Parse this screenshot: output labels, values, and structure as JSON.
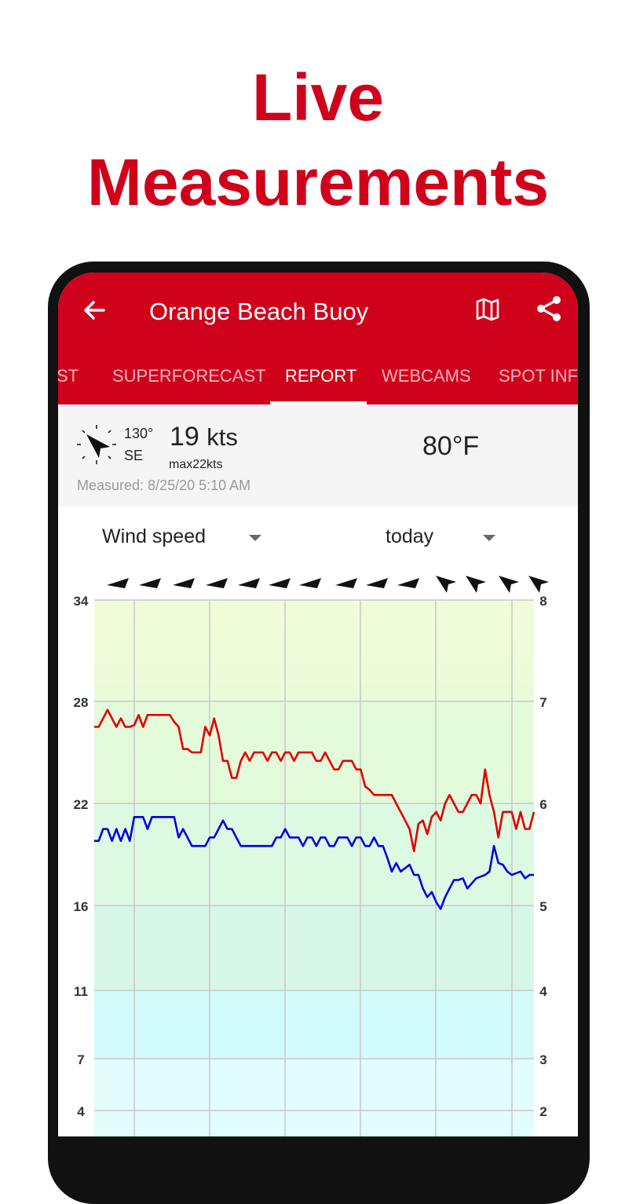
{
  "headline": {
    "line1": "Live",
    "line2": "Measurements"
  },
  "app_bar": {
    "title": "Orange Beach Buoy",
    "icons": {
      "back": "arrow-left-icon",
      "map": "map-icon",
      "share": "share-icon"
    }
  },
  "tabs": [
    {
      "label": "FORECAST",
      "visible_text": "ST"
    },
    {
      "label": "SUPERFORECAST"
    },
    {
      "label": "REPORT",
      "selected": true
    },
    {
      "label": "WEBCAMS"
    },
    {
      "label": "SPOT INFO",
      "visible_text": "SPOT INFO"
    }
  ],
  "summary": {
    "direction_degrees": "130°",
    "direction_name": "SE",
    "speed": "19",
    "speed_unit": "kts",
    "gust": "max22kts",
    "temperature": "80°F",
    "measured": "Measured: 8/25/20 5:10 AM"
  },
  "controls": {
    "parameter_select": "Wind speed",
    "period_select": "today"
  },
  "colors": {
    "brand": "#d0021b",
    "wind_speed_line": "#0000e0",
    "wind_gust_line": "#e00000"
  },
  "chart_data": {
    "type": "line",
    "y_left_ticks": [
      4,
      7,
      11,
      16,
      22,
      28,
      34
    ],
    "y_right_ticks": [
      2,
      3,
      4,
      5,
      6,
      7,
      8
    ],
    "ylim": [
      4,
      34
    ],
    "grid": true,
    "x_count": 100,
    "series": [
      {
        "values": [
          19.8,
          19.8,
          20.5,
          20.5,
          19.8,
          20.5,
          19.8,
          20.5,
          19.8,
          21.2,
          21.2,
          21.2,
          20.5,
          21.2,
          21.2,
          21.2,
          21.2,
          21.2,
          21.2,
          20.0,
          20.5,
          20.0,
          19.5,
          19.5,
          19.5,
          19.5,
          20.0,
          20.0,
          20.5,
          21.0,
          20.5,
          20.5,
          20.0,
          19.5,
          19.5,
          19.5,
          19.5,
          19.5,
          19.5,
          19.5,
          19.5,
          20.0,
          20.0,
          20.5,
          20.0,
          20.0,
          20.0,
          19.5,
          20.0,
          20.0,
          19.5,
          20.0,
          20.0,
          19.5,
          19.5,
          20.0,
          20.0,
          20.0,
          19.5,
          20.0,
          20.0,
          19.5,
          19.5,
          20.0,
          19.5,
          19.5,
          18.8,
          18.0,
          18.5,
          18.0,
          18.2,
          18.4,
          17.8,
          17.8,
          17.0,
          16.5,
          16.8,
          16.2,
          15.8,
          16.5,
          17.0,
          17.5,
          17.5,
          17.6,
          17.0,
          17.3,
          17.6,
          17.7,
          17.8,
          18.0,
          19.5,
          18.5,
          18.4,
          18.0,
          17.8,
          17.9,
          18.0,
          17.6,
          17.8,
          17.8
        ],
        "gust_note": ""
      },
      {
        "values": [
          26.5,
          26.5,
          27.0,
          27.5,
          27.0,
          26.5,
          27.0,
          26.5,
          26.5,
          26.6,
          27.2,
          26.5,
          27.2,
          27.2,
          27.2,
          27.2,
          27.2,
          27.2,
          26.8,
          26.5,
          25.2,
          25.2,
          25.0,
          25.0,
          25.0,
          26.5,
          26.0,
          27.0,
          26.0,
          24.5,
          24.5,
          23.5,
          23.5,
          24.5,
          25.0,
          24.5,
          25.0,
          25.0,
          25.0,
          24.5,
          25.0,
          25.0,
          24.5,
          25.0,
          25.0,
          24.5,
          25.0,
          25.0,
          25.0,
          25.0,
          24.5,
          24.5,
          25.0,
          24.5,
          24.0,
          24.0,
          24.5,
          24.5,
          24.5,
          24.0,
          24.0,
          23.0,
          22.8,
          22.5,
          22.5,
          22.5,
          22.5,
          22.5,
          22.0,
          21.5,
          21.0,
          20.5,
          19.2,
          20.8,
          21.0,
          20.2,
          21.2,
          21.5,
          21.0,
          22.0,
          22.5,
          22.0,
          21.5,
          21.5,
          22.0,
          22.5,
          22.5,
          22.0,
          24.0,
          22.5,
          21.5,
          20.0,
          21.5,
          21.5,
          21.5,
          20.5,
          21.5,
          20.5,
          20.5,
          21.5
        ]
      }
    ],
    "wind_arrows": [
      "E",
      "E",
      "E",
      "E",
      "E",
      "E",
      "E",
      "E",
      "E",
      "E",
      "SE",
      "SE",
      "SE",
      "SE"
    ]
  }
}
